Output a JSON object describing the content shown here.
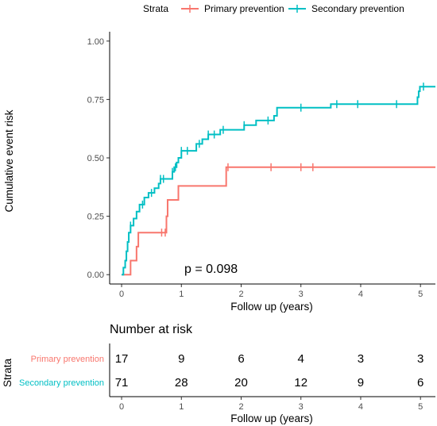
{
  "legend": {
    "title": "Strata",
    "items": [
      {
        "label": "Primary prevention",
        "color": "#F8766D"
      },
      {
        "label": "Secondary prevention",
        "color": "#00BFC4"
      }
    ]
  },
  "chart_data": {
    "type": "line",
    "subtype": "step",
    "ylabel": "Cumulative event risk",
    "xlabel": "Follow up (years)",
    "xlim": [
      -0.2,
      5.25
    ],
    "ylim": [
      -0.04,
      1.04
    ],
    "x_ticks": [
      "0",
      "1",
      "2",
      "3",
      "4",
      "5"
    ],
    "y_ticks": [
      "0.00",
      "0.25",
      "0.50",
      "0.75",
      "1.00"
    ],
    "annotation": "p = 0.098",
    "series": [
      {
        "name": "Primary prevention",
        "color": "#F8766D",
        "steps": [
          [
            0,
            0
          ],
          [
            0.15,
            0.06
          ],
          [
            0.25,
            0.12
          ],
          [
            0.28,
            0.18
          ],
          [
            0.75,
            0.25
          ],
          [
            0.77,
            0.32
          ],
          [
            0.95,
            0.38
          ],
          [
            1.75,
            0.46
          ]
        ],
        "end_x": 5.25,
        "censor_x": [
          0.67,
          0.73,
          1.78,
          2.5,
          3.0,
          3.2
        ]
      },
      {
        "name": "Secondary prevention",
        "color": "#00BFC4",
        "steps": [
          [
            0,
            0
          ],
          [
            0.03,
            0.03
          ],
          [
            0.06,
            0.06
          ],
          [
            0.08,
            0.1
          ],
          [
            0.1,
            0.14
          ],
          [
            0.12,
            0.18
          ],
          [
            0.15,
            0.21
          ],
          [
            0.2,
            0.24
          ],
          [
            0.25,
            0.27
          ],
          [
            0.3,
            0.3
          ],
          [
            0.38,
            0.33
          ],
          [
            0.45,
            0.35
          ],
          [
            0.55,
            0.37
          ],
          [
            0.62,
            0.39
          ],
          [
            0.65,
            0.41
          ],
          [
            0.85,
            0.44
          ],
          [
            0.88,
            0.46
          ],
          [
            0.92,
            0.48
          ],
          [
            0.95,
            0.5
          ],
          [
            1.0,
            0.53
          ],
          [
            1.25,
            0.56
          ],
          [
            1.35,
            0.58
          ],
          [
            1.45,
            0.6
          ],
          [
            1.65,
            0.62
          ],
          [
            2.05,
            0.64
          ],
          [
            2.25,
            0.66
          ],
          [
            2.55,
            0.68
          ],
          [
            2.6,
            0.715
          ],
          [
            3.5,
            0.73
          ],
          [
            4.95,
            0.76
          ],
          [
            4.97,
            0.785
          ],
          [
            4.99,
            0.805
          ]
        ],
        "end_x": 5.25,
        "censor_x": [
          0.15,
          0.35,
          0.5,
          0.65,
          0.7,
          0.85,
          0.9,
          1.0,
          1.1,
          1.3,
          1.45,
          1.55,
          1.7,
          2.05,
          2.45,
          3.0,
          3.6,
          3.95,
          4.6,
          5.05
        ]
      }
    ]
  },
  "risk_table": {
    "title": "Number at risk",
    "ylabel": "Strata",
    "xlabel": "Follow up (years)",
    "x_ticks": [
      "0",
      "1",
      "2",
      "3",
      "4",
      "5"
    ],
    "rows": [
      {
        "label": "Primary prevention",
        "color": "#F8766D",
        "values": [
          "17",
          "9",
          "6",
          "4",
          "3",
          "3"
        ]
      },
      {
        "label": "Secondary prevention",
        "color": "#00BFC4",
        "values": [
          "71",
          "28",
          "20",
          "12",
          "9",
          "6"
        ]
      }
    ]
  }
}
